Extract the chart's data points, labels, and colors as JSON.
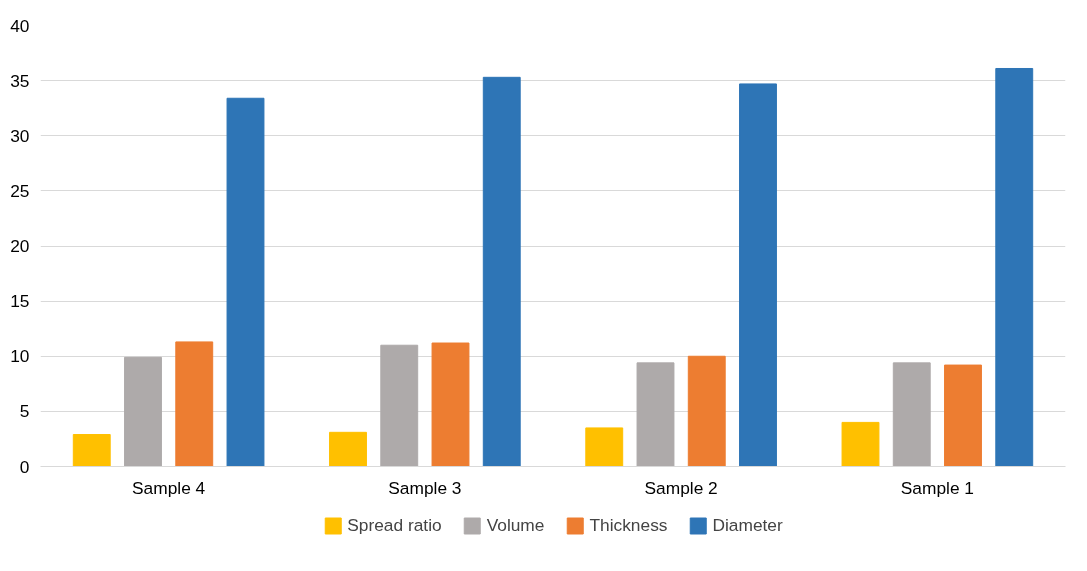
{
  "chart_data": {
    "type": "bar",
    "categories": [
      "Sample 4",
      "Sample 3",
      "Sample 2",
      "Sample 1"
    ],
    "series": [
      {
        "name": "Spread ratio",
        "color": "#ffc000",
        "values": [
          2.9,
          3.1,
          3.5,
          4.0
        ]
      },
      {
        "name": "Volume",
        "color": "#aeaaaa",
        "values": [
          9.9,
          11.0,
          9.4,
          9.4
        ]
      },
      {
        "name": "Thickness",
        "color": "#ed7d31",
        "values": [
          11.3,
          11.2,
          10.0,
          9.2
        ]
      },
      {
        "name": "Diameter",
        "color": "#2e75b6",
        "values": [
          33.4,
          35.3,
          34.7,
          36.1
        ]
      }
    ],
    "ylim": [
      0,
      40
    ],
    "yticks": [
      0,
      5,
      10,
      15,
      20,
      25,
      30,
      35,
      40
    ],
    "grid": "y",
    "legend": "bottom"
  }
}
